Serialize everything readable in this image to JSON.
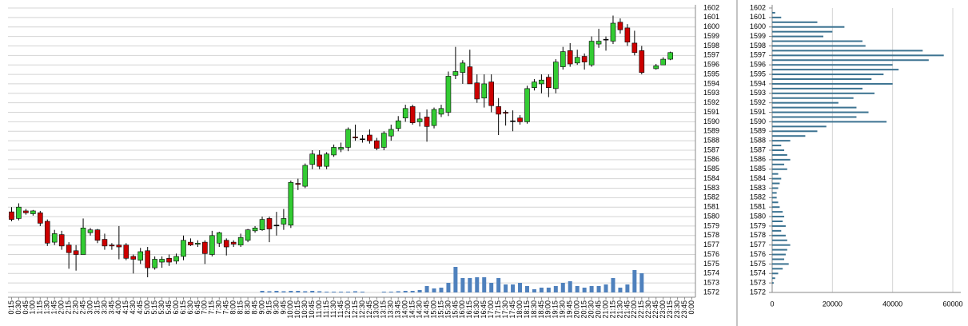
{
  "chart_data": [
    {
      "type": "candlestick",
      "categories": [
        "0:15",
        "0:30",
        "0:45",
        "1:00",
        "1:15",
        "1:30",
        "1:45",
        "2:00",
        "2:15",
        "2:30",
        "2:45",
        "3:00",
        "3:15",
        "3:30",
        "3:45",
        "4:00",
        "4:15",
        "4:30",
        "4:45",
        "5:00",
        "5:15",
        "5:30",
        "5:45",
        "6:00",
        "6:15",
        "6:30",
        "6:45",
        "7:00",
        "7:15",
        "7:30",
        "7:45",
        "8:00",
        "8:15",
        "8:30",
        "8:45",
        "9:00",
        "9:15",
        "9:30",
        "9:45",
        "10:00",
        "10:15",
        "10:30",
        "10:45",
        "11:00",
        "11:15",
        "11:30",
        "11:45",
        "12:00",
        "12:15",
        "12:30",
        "12:45",
        "13:00",
        "13:15",
        "13:30",
        "13:45",
        "14:00",
        "14:15",
        "14:30",
        "14:45",
        "15:00",
        "15:15",
        "15:30",
        "15:45",
        "16:00",
        "16:15",
        "16:30",
        "16:45",
        "17:00",
        "17:15",
        "17:30",
        "17:45",
        "18:00",
        "18:15",
        "18:30",
        "18:45",
        "19:00",
        "19:15",
        "19:30",
        "19:45",
        "20:00",
        "20:15",
        "20:30",
        "20:45",
        "21:00",
        "21:15",
        "21:30",
        "21:45",
        "22:00",
        "22:15",
        "22:30",
        "22:45",
        "23:00",
        "23:15",
        "23:30",
        "23:45",
        "0:00"
      ],
      "open": [
        1580.5,
        1579.8,
        1580.6,
        1580.3,
        1580.4,
        1579.5,
        1577.3,
        1578.1,
        1577,
        1576.4,
        1576,
        1578.3,
        1578.6,
        1577.6,
        1577,
        1577,
        1577,
        1575.8,
        1575.4,
        1576.4,
        1574.6,
        1575.2,
        1575.6,
        1575.3,
        1575.8,
        1577.3,
        1577.1,
        1577.3,
        1576,
        1577.2,
        1577.5,
        1577.3,
        1577,
        1577.5,
        1578.5,
        1578.6,
        1579.8,
        1579.1,
        1579.2,
        1579.1,
        1583.5,
        1583.2,
        1585.5,
        1586.5,
        1585.3,
        1586.5,
        1587.1,
        1587.3,
        1588.4,
        1588.2,
        1588.6,
        1588,
        1587.3,
        1588.5,
        1589.3,
        1590.4,
        1591.6,
        1590,
        1590.5,
        1589.6,
        1590.8,
        1591,
        1594.9,
        1595.2,
        1595.8,
        1594.1,
        1592.5,
        1594.2,
        1591.6,
        1591,
        1590.1,
        1590.4,
        1590,
        1593.6,
        1594,
        1594.7,
        1593.5,
        1595.8,
        1597.5,
        1596.2,
        1596.9,
        1596,
        1598.2,
        1598.7,
        1598.5,
        1600.5,
        1599.9,
        1598.3,
        1597.5,
        null,
        1595.6,
        1596,
        1596.6,
        null,
        null,
        null
      ],
      "high": [
        1581,
        1581.4,
        1580.8,
        1580.7,
        1580.6,
        1579.7,
        1578.6,
        1578.5,
        1577.3,
        1577,
        1579.8,
        1578.8,
        1578.7,
        1578.2,
        1577.2,
        1579,
        1577.2,
        1576,
        1576.7,
        1576.8,
        1575.8,
        1575.8,
        1576,
        1576.1,
        1578,
        1577.7,
        1577.5,
        1577.5,
        1578.5,
        1578.4,
        1577.7,
        1577.5,
        1578.2,
        1578.7,
        1579,
        1580,
        1580,
        1580.5,
        1580.8,
        1583.8,
        1584,
        1585.6,
        1587,
        1587,
        1586.8,
        1587.6,
        1587.8,
        1589.4,
        1589.7,
        1588.6,
        1589.2,
        1588.3,
        1589,
        1589.7,
        1590.6,
        1591.8,
        1591.8,
        1591,
        1591.3,
        1591.5,
        1591.8,
        1595.3,
        1597.9,
        1596.5,
        1597.6,
        1595,
        1595,
        1595,
        1592.5,
        1591.2,
        1591.2,
        1590.7,
        1593.8,
        1594.5,
        1595,
        1595,
        1596.6,
        1597.9,
        1598.3,
        1597.6,
        1597.2,
        1599,
        1599.8,
        1599,
        1601.2,
        1600.9,
        1600.3,
        1599.6,
        1598,
        null,
        1596.1,
        1596.8,
        1597.4,
        null,
        null,
        null
      ],
      "low": [
        1579.5,
        1579.6,
        1580.2,
        1580.1,
        1579,
        1576.9,
        1577,
        1576.5,
        1574.5,
        1574.3,
        1576,
        1578,
        1577.2,
        1576.5,
        1576.5,
        1575.5,
        1575.4,
        1574,
        1575,
        1573.6,
        1574.4,
        1574.6,
        1574.8,
        1575,
        1575.4,
        1576.9,
        1576.8,
        1575,
        1575.8,
        1576.8,
        1575.9,
        1576.8,
        1576.8,
        1577.3,
        1578.3,
        1578.5,
        1577.3,
        1578,
        1578.6,
        1578.8,
        1582.8,
        1583,
        1585,
        1585,
        1585,
        1586.3,
        1586.8,
        1586.9,
        1588,
        1587.8,
        1587.7,
        1587,
        1587,
        1588,
        1589,
        1590,
        1589.7,
        1589.5,
        1587.9,
        1589.3,
        1590.5,
        1590.6,
        1594.5,
        1594,
        1594,
        1592,
        1591.5,
        1591,
        1588.6,
        1589.6,
        1589,
        1589.7,
        1589.8,
        1593.3,
        1593,
        1592.6,
        1593,
        1595.5,
        1595.8,
        1596,
        1595.5,
        1595.8,
        1597.8,
        1597.5,
        1598.2,
        1599.3,
        1598,
        1597,
        1595,
        null,
        1595.5,
        1596,
        1596.5,
        null,
        null,
        null
      ],
      "close": [
        1579.7,
        1581,
        1580.4,
        1580.6,
        1579.3,
        1577.2,
        1578.2,
        1576.9,
        1576.2,
        1576,
        1578.8,
        1578.6,
        1577.5,
        1576.9,
        1576.9,
        1576.8,
        1575.6,
        1575.5,
        1576.3,
        1574.6,
        1575.5,
        1575.5,
        1575.2,
        1575.8,
        1577.5,
        1577,
        1577.2,
        1576.1,
        1578,
        1578.3,
        1576.8,
        1577.1,
        1577.8,
        1578.6,
        1578.8,
        1579.7,
        1578.7,
        1579.1,
        1579.8,
        1583.6,
        1583.4,
        1585.4,
        1586.6,
        1585.3,
        1586.6,
        1587.3,
        1587.3,
        1589.2,
        1588.3,
        1588.2,
        1588,
        1587.2,
        1588.8,
        1589.2,
        1590.1,
        1591.4,
        1589.9,
        1590.3,
        1589.5,
        1591.3,
        1591.4,
        1594.8,
        1595.3,
        1596.2,
        1594,
        1592.4,
        1594,
        1591.7,
        1590.8,
        1590.9,
        1590.1,
        1590,
        1593.5,
        1594.2,
        1594.4,
        1593.6,
        1596.3,
        1597.4,
        1596.1,
        1596.8,
        1596.3,
        1598.5,
        1598.5,
        1598.7,
        1600.4,
        1599.7,
        1598.4,
        1597.3,
        1595.2,
        null,
        1595.9,
        1596.6,
        1597.3,
        null,
        null,
        null
      ],
      "volume": [
        0,
        0,
        0,
        0,
        0,
        0,
        0,
        0,
        0,
        0,
        0,
        0,
        0,
        0,
        0,
        0,
        0,
        0,
        0,
        0,
        0,
        0,
        0,
        0,
        0,
        0,
        0,
        0,
        0,
        0,
        0,
        0,
        0,
        0,
        0,
        2000,
        1500,
        2000,
        1500,
        2000,
        2000,
        1500,
        2000,
        1500,
        1000,
        1000,
        1000,
        1000,
        1500,
        1000,
        0,
        0,
        1000,
        1000,
        1500,
        2000,
        2000,
        3000,
        8000,
        5000,
        6000,
        12000,
        32000,
        18000,
        18000,
        19000,
        19000,
        12000,
        18000,
        10000,
        10000,
        12000,
        8000,
        4000,
        6000,
        6000,
        8000,
        12000,
        14000,
        8000,
        6000,
        8000,
        8000,
        10000,
        18000,
        6000,
        10000,
        28000,
        24000,
        null,
        null,
        null,
        null,
        null,
        null,
        null
      ],
      "ylim": [
        1572,
        1602
      ],
      "yticks": [
        1572,
        1573,
        1574,
        1575,
        1576,
        1577,
        1578,
        1579,
        1580,
        1581,
        1582,
        1583,
        1584,
        1585,
        1586,
        1587,
        1588,
        1589,
        1590,
        1591,
        1592,
        1593,
        1594,
        1595,
        1596,
        1597,
        1598,
        1599,
        1600,
        1601,
        1602
      ],
      "vlim": [
        0,
        40000
      ],
      "up_color": "#33cc33",
      "down_color": "#cc0000",
      "volume_color": "#4f81bd",
      "grid": true
    },
    {
      "type": "bar",
      "orientation": "horizontal",
      "y": [
        1601.5,
        1601,
        1600.5,
        1600,
        1599.5,
        1599,
        1598.5,
        1598,
        1597.5,
        1597,
        1596.5,
        1596,
        1595.5,
        1595,
        1594.5,
        1594,
        1593.5,
        1593,
        1592.5,
        1592,
        1591.5,
        1591,
        1590.5,
        1590,
        1589.5,
        1589,
        1588.5,
        1588,
        1587.5,
        1587,
        1586.5,
        1586,
        1585.5,
        1585,
        1584.5,
        1584,
        1583.5,
        1583,
        1582.5,
        1582,
        1581.5,
        1581,
        1580.5,
        1580,
        1579.5,
        1579,
        1578.5,
        1578,
        1577.5,
        1577,
        1576.5,
        1576,
        1575.5,
        1575,
        1574.5,
        1574,
        1573.5,
        1573
      ],
      "values": [
        1000,
        3000,
        15000,
        24000,
        20000,
        17000,
        30000,
        31000,
        50000,
        57000,
        52000,
        40000,
        42000,
        37000,
        33000,
        40000,
        30000,
        34000,
        27000,
        22000,
        28000,
        32000,
        28000,
        38000,
        18000,
        15000,
        11000,
        6000,
        3000,
        4000,
        5000,
        6000,
        4000,
        5000,
        2000,
        3000,
        2500,
        2000,
        1500,
        1500,
        2000,
        2500,
        3500,
        4000,
        3500,
        4500,
        3000,
        4500,
        5000,
        6000,
        5000,
        4500,
        4000,
        5500,
        3500,
        2000,
        1000,
        500
      ],
      "xlim": [
        0,
        60000
      ],
      "xticks": [
        0,
        20000,
        40000,
        60000
      ],
      "ylim": [
        1572,
        1602
      ],
      "yticks": [
        1572,
        1573,
        1574,
        1575,
        1576,
        1577,
        1578,
        1579,
        1580,
        1581,
        1582,
        1583,
        1584,
        1585,
        1586,
        1587,
        1588,
        1589,
        1590,
        1591,
        1592,
        1593,
        1594,
        1595,
        1596,
        1597,
        1598,
        1599,
        1600,
        1601,
        1602
      ],
      "color": "#3c7391",
      "grid": true
    }
  ]
}
